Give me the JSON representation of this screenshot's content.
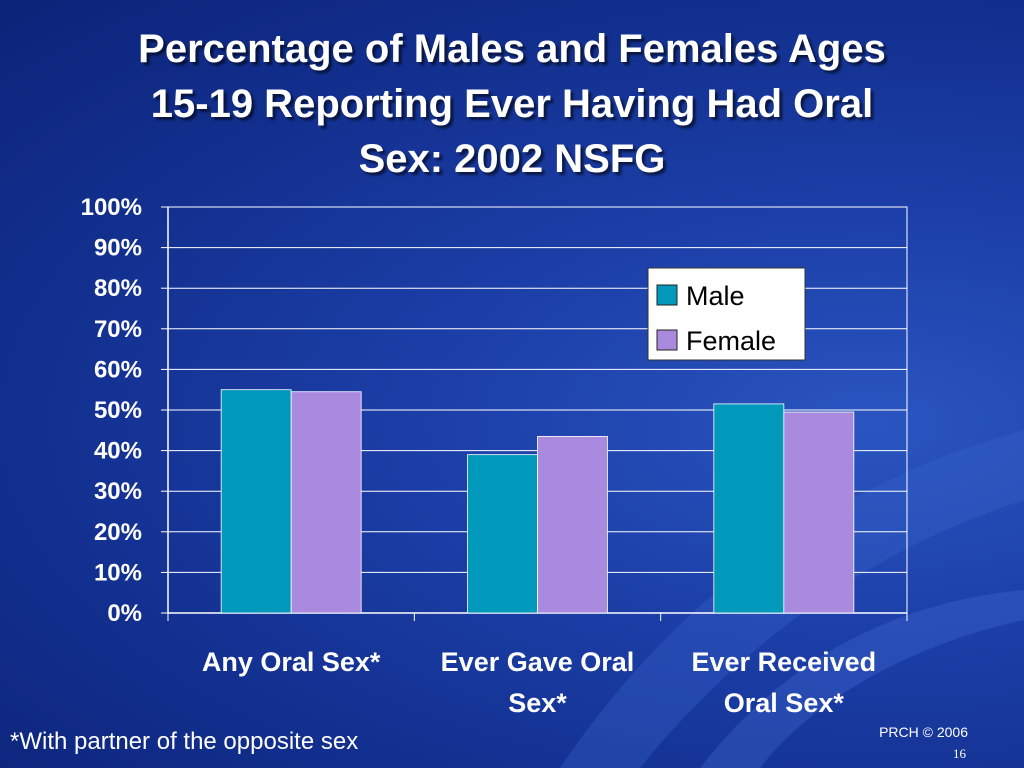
{
  "slide": {
    "title_lines": [
      "Percentage of Males and Females Ages",
      "15-19 Reporting Ever Having Had Oral",
      "Sex: 2002 NSFG"
    ],
    "footnote": "*With partner of the opposite sex",
    "copyright": "PRCH © 2006",
    "slide_number": "16"
  },
  "colors": {
    "male": "#0099bb",
    "female": "#a98adf",
    "grid": "#ffffff",
    "text": "#ffffff"
  },
  "chart_data": {
    "type": "bar",
    "title": "",
    "categories": [
      [
        "Any Oral Sex*"
      ],
      [
        "Ever Gave Oral",
        "Sex*"
      ],
      [
        "Ever Received",
        "Oral Sex*"
      ]
    ],
    "series": [
      {
        "name": "Male",
        "values": [
          55,
          39,
          51.5
        ]
      },
      {
        "name": "Female",
        "values": [
          54.5,
          43.5,
          49.5
        ]
      }
    ],
    "ylim": [
      0,
      100
    ],
    "yticks": [
      "0%",
      "10%",
      "20%",
      "30%",
      "40%",
      "50%",
      "60%",
      "70%",
      "80%",
      "90%",
      "100%"
    ],
    "grid": true,
    "legend_position": "top-right"
  }
}
